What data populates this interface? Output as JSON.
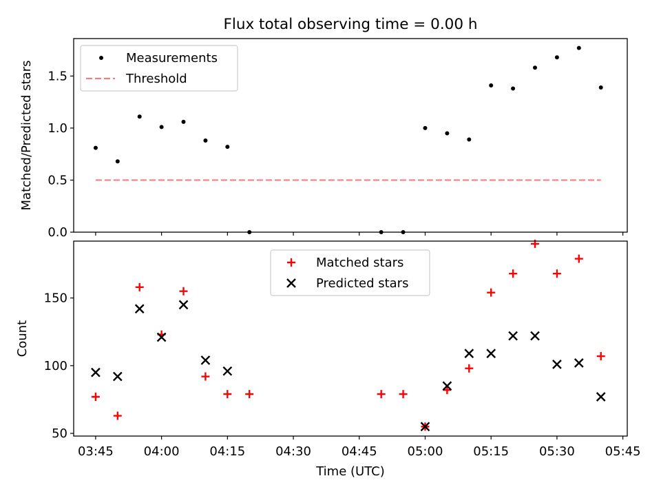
{
  "figure": {
    "title": "Flux total observing time = 0.00 h",
    "xlabel": "Time (UTC)"
  },
  "colors": {
    "measurement": "#000000",
    "threshold": "#f08080",
    "matched": "#ff0000",
    "predicted": "#000000",
    "axes": "#000000",
    "background": "#ffffff"
  },
  "chart_data": [
    {
      "type": "scatter",
      "ylabel": "Matched/Predicted stars",
      "xlim": [
        "03:40",
        "05:46"
      ],
      "ylim": [
        0,
        1.86
      ],
      "xticks": [
        "03:45",
        "04:00",
        "04:15",
        "04:30",
        "04:45",
        "05:00",
        "05:15",
        "05:30",
        "05:45"
      ],
      "yticks": [
        "0.0",
        "0.5",
        "1.0",
        "1.5"
      ],
      "show_x_tick_labels": false,
      "legend": {
        "placement": "upper-left",
        "entries": [
          "Measurements",
          "Threshold"
        ]
      },
      "series": [
        {
          "name": "Measurements",
          "marker": "dot",
          "points": [
            {
              "x": "03:45",
              "y": 0.81
            },
            {
              "x": "03:50",
              "y": 0.68
            },
            {
              "x": "03:55",
              "y": 1.11
            },
            {
              "x": "04:00",
              "y": 1.01
            },
            {
              "x": "04:05",
              "y": 1.06
            },
            {
              "x": "04:10",
              "y": 0.88
            },
            {
              "x": "04:15",
              "y": 0.82
            },
            {
              "x": "04:20",
              "y": 0.0
            },
            {
              "x": "04:50",
              "y": 0.0
            },
            {
              "x": "04:55",
              "y": 0.0
            },
            {
              "x": "05:00",
              "y": 1.0
            },
            {
              "x": "05:05",
              "y": 0.95
            },
            {
              "x": "05:10",
              "y": 0.89
            },
            {
              "x": "05:15",
              "y": 1.41
            },
            {
              "x": "05:20",
              "y": 1.38
            },
            {
              "x": "05:25",
              "y": 1.58
            },
            {
              "x": "05:30",
              "y": 1.68
            },
            {
              "x": "05:35",
              "y": 1.77
            },
            {
              "x": "05:40",
              "y": 1.39
            }
          ]
        },
        {
          "name": "Threshold",
          "marker": "dashed-line",
          "points": [
            {
              "x": "03:45",
              "y": 0.5
            },
            {
              "x": "05:40",
              "y": 0.5
            }
          ]
        }
      ]
    },
    {
      "type": "scatter",
      "ylabel": "Count",
      "xlim": [
        "03:40",
        "05:46"
      ],
      "ylim": [
        48,
        192
      ],
      "xticks": [
        "03:45",
        "04:00",
        "04:15",
        "04:30",
        "04:45",
        "05:00",
        "05:15",
        "05:30",
        "05:45"
      ],
      "yticks": [
        "50",
        "100",
        "150"
      ],
      "show_x_tick_labels": true,
      "legend": {
        "placement": "upper-center",
        "entries": [
          "Matched stars",
          "Predicted stars"
        ]
      },
      "series": [
        {
          "name": "Matched stars",
          "marker": "plus",
          "points": [
            {
              "x": "03:45",
              "y": 77
            },
            {
              "x": "03:50",
              "y": 63
            },
            {
              "x": "03:55",
              "y": 158
            },
            {
              "x": "04:00",
              "y": 123
            },
            {
              "x": "04:05",
              "y": 155
            },
            {
              "x": "04:10",
              "y": 92
            },
            {
              "x": "04:15",
              "y": 79
            },
            {
              "x": "04:20",
              "y": 79
            },
            {
              "x": "04:50",
              "y": 79
            },
            {
              "x": "04:55",
              "y": 79
            },
            {
              "x": "05:00",
              "y": 55
            },
            {
              "x": "05:05",
              "y": 82
            },
            {
              "x": "05:10",
              "y": 98
            },
            {
              "x": "05:15",
              "y": 154
            },
            {
              "x": "05:20",
              "y": 168
            },
            {
              "x": "05:25",
              "y": 190
            },
            {
              "x": "05:30",
              "y": 168
            },
            {
              "x": "05:35",
              "y": 179
            },
            {
              "x": "05:40",
              "y": 107
            }
          ]
        },
        {
          "name": "Predicted stars",
          "marker": "x",
          "points": [
            {
              "x": "03:45",
              "y": 95
            },
            {
              "x": "03:50",
              "y": 92
            },
            {
              "x": "03:55",
              "y": 142
            },
            {
              "x": "04:00",
              "y": 121
            },
            {
              "x": "04:05",
              "y": 145
            },
            {
              "x": "04:10",
              "y": 104
            },
            {
              "x": "04:15",
              "y": 96
            },
            {
              "x": "05:00",
              "y": 55
            },
            {
              "x": "05:05",
              "y": 85
            },
            {
              "x": "05:10",
              "y": 109
            },
            {
              "x": "05:15",
              "y": 109
            },
            {
              "x": "05:20",
              "y": 122
            },
            {
              "x": "05:25",
              "y": 122
            },
            {
              "x": "05:30",
              "y": 101
            },
            {
              "x": "05:35",
              "y": 102
            },
            {
              "x": "05:40",
              "y": 77
            }
          ]
        }
      ]
    }
  ]
}
